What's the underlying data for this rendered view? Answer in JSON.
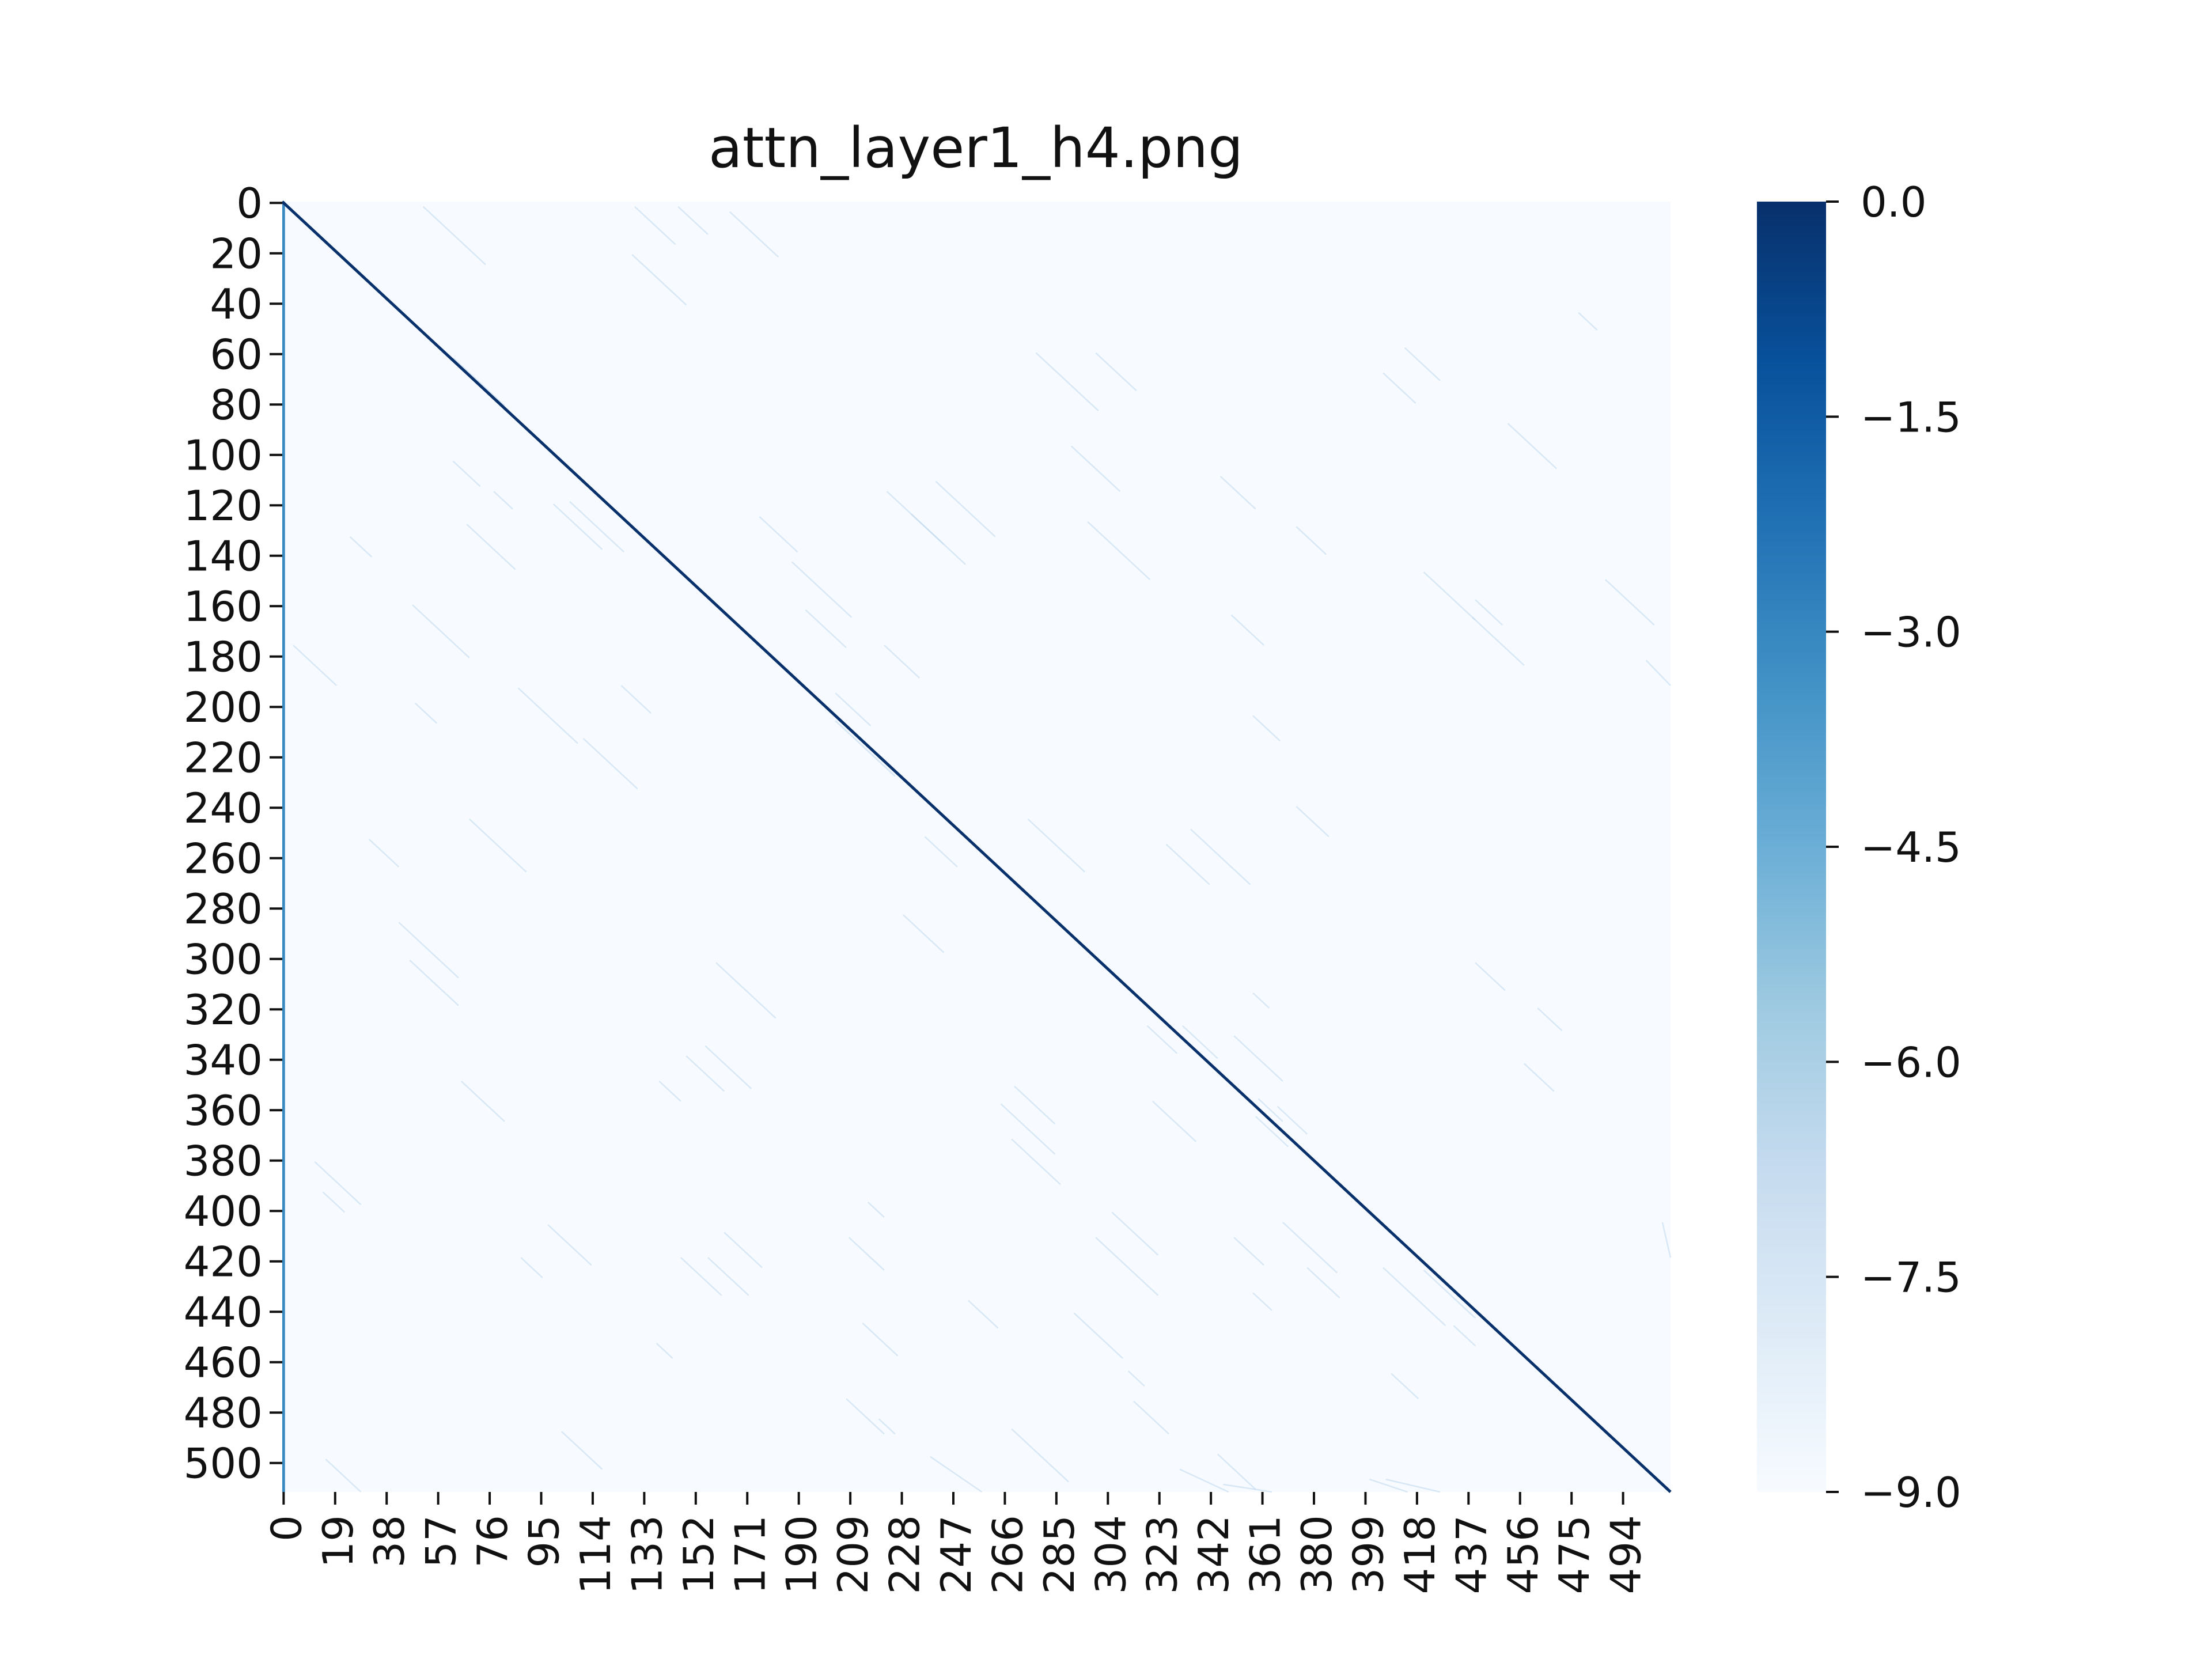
{
  "chart_data": {
    "type": "heatmap",
    "title": "attn_layer1_h4.png",
    "xlabel": "",
    "ylabel": "",
    "n_rows": 512,
    "n_cols": 512,
    "x_ticks": [
      0,
      19,
      38,
      57,
      76,
      95,
      114,
      133,
      152,
      171,
      190,
      209,
      228,
      247,
      266,
      285,
      304,
      323,
      342,
      361,
      380,
      399,
      418,
      437,
      456,
      475,
      494
    ],
    "y_ticks": [
      0,
      20,
      40,
      60,
      80,
      100,
      120,
      140,
      160,
      180,
      200,
      220,
      240,
      260,
      280,
      300,
      320,
      340,
      360,
      380,
      400,
      420,
      440,
      460,
      480,
      500
    ],
    "colormap": "Blues",
    "colormap_stops": [
      "#f7fbff",
      "#deebf7",
      "#c6dbef",
      "#9ecae1",
      "#6baed6",
      "#4292c6",
      "#2171b5",
      "#08519c",
      "#08306b"
    ],
    "value_range": [
      -9.0,
      0.0
    ],
    "colorbar": {
      "tick_values": [
        0.0,
        -1.5,
        -3.0,
        -4.5,
        -6.0,
        -7.5,
        -9.0
      ],
      "tick_labels": [
        "0.0",
        "−1.5",
        "−3.0",
        "−4.5",
        "−6.0",
        "−7.5",
        "−9.0"
      ]
    },
    "pattern": {
      "background_value": -9.0,
      "diagonal_value": 0.0,
      "first_column_value": -3.0,
      "off_diagonal_streak_value": -6.5
    },
    "grid": false,
    "legend": "colorbar-right"
  }
}
